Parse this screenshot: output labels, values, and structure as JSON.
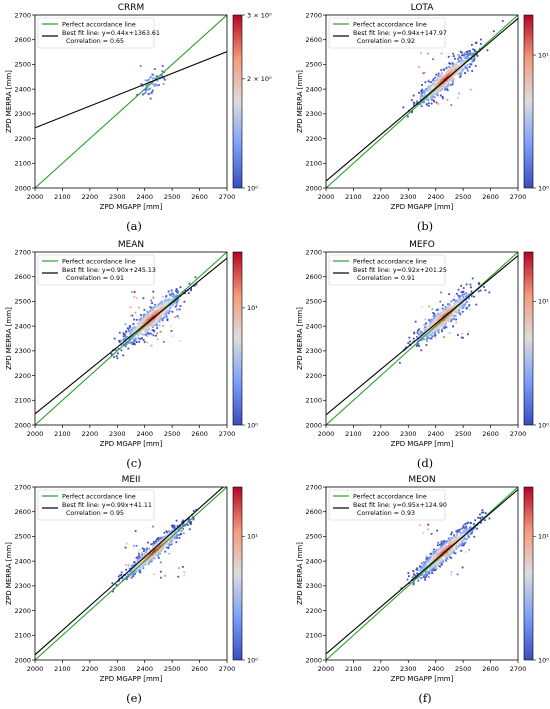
{
  "panels": [
    {
      "id": "a",
      "title": "CRRM",
      "panel_label": "(a)",
      "slope": 0.44,
      "intercept": 1363.61,
      "legend": [
        "Perfect accordance line",
        "Best fit line: y=0.44x+1363.61",
        "Correlation = 0.65"
      ],
      "colorbar": {
        "ticks": [
          "10⁰",
          "2 × 10⁰",
          "3 × 10⁰"
        ],
        "tick_values": [
          1,
          2,
          3
        ],
        "scale": "log",
        "range": [
          1,
          3
        ]
      },
      "cluster": {
        "cx": 2430,
        "cy": 2432,
        "sx": 28,
        "sy": 32,
        "rho": 0.65,
        "n": 70
      }
    },
    {
      "id": "b",
      "title": "LOTA",
      "panel_label": "(b)",
      "slope": 0.94,
      "intercept": 147.97,
      "legend": [
        "Perfect accordance line",
        "Best fit line: y=0.94x+147.97",
        "Correlation = 0.92"
      ],
      "colorbar": {
        "ticks": [
          "10⁰",
          "10¹"
        ],
        "tick_values": [
          1,
          10
        ],
        "scale": "log",
        "range": [
          1,
          20
        ]
      },
      "cluster": {
        "cx": 2435,
        "cy": 2440,
        "sx": 55,
        "sy": 55,
        "rho": 0.92,
        "n": 650
      }
    },
    {
      "id": "c",
      "title": "MEAN",
      "panel_label": "(c)",
      "slope": 0.9,
      "intercept": 245.13,
      "legend": [
        "Perfect accordance line",
        "Best fit line: y=0.90x+245.13",
        "Correlation = 0.91"
      ],
      "colorbar": {
        "ticks": [
          "10⁰",
          "10¹"
        ],
        "tick_values": [
          1,
          10
        ],
        "scale": "log",
        "range": [
          1,
          30
        ]
      },
      "cluster": {
        "cx": 2425,
        "cy": 2430,
        "sx": 55,
        "sy": 55,
        "rho": 0.91,
        "n": 700
      }
    },
    {
      "id": "d",
      "title": "MEFO",
      "panel_label": "(d)",
      "slope": 0.92,
      "intercept": 201.25,
      "legend": [
        "Perfect accordance line",
        "Best fit line: y=0.92x+201.25",
        "Correlation = 0.91"
      ],
      "colorbar": {
        "ticks": [
          "10⁰",
          "10¹"
        ],
        "tick_values": [
          1,
          10
        ],
        "scale": "log",
        "range": [
          1,
          25
        ]
      },
      "cluster": {
        "cx": 2430,
        "cy": 2435,
        "sx": 52,
        "sy": 52,
        "rho": 0.91,
        "n": 650
      }
    },
    {
      "id": "e",
      "title": "MEII",
      "panel_label": "(e)",
      "slope": 0.99,
      "intercept": 41.11,
      "legend": [
        "Perfect accordance line",
        "Best fit line: y=0.99x+41.11",
        "Correlation = 0.95"
      ],
      "colorbar": {
        "ticks": [
          "10⁰",
          "10¹"
        ],
        "tick_values": [
          1,
          10
        ],
        "scale": "log",
        "range": [
          1,
          25
        ]
      },
      "cluster": {
        "cx": 2435,
        "cy": 2440,
        "sx": 55,
        "sy": 55,
        "rho": 0.95,
        "n": 650
      }
    },
    {
      "id": "f",
      "title": "MEON",
      "panel_label": "(f)",
      "slope": 0.95,
      "intercept": 124.9,
      "legend": [
        "Perfect accordance line",
        "Best fit line: y=0.95x+124.90",
        "Correlation = 0.93"
      ],
      "colorbar": {
        "ticks": [
          "10⁰",
          "10¹"
        ],
        "tick_values": [
          1,
          10
        ],
        "scale": "log",
        "range": [
          1,
          25
        ]
      },
      "cluster": {
        "cx": 2435,
        "cy": 2440,
        "sx": 55,
        "sy": 55,
        "rho": 0.93,
        "n": 650
      }
    }
  ],
  "chart_data": [
    {
      "type": "scatter",
      "title": "CRRM",
      "xlabel": "ZPD MGAPP [mm]",
      "ylabel": "ZPD MERRA [mm]",
      "xlim": [
        2000,
        2700
      ],
      "ylim": [
        2000,
        2700
      ],
      "series": [
        {
          "name": "Perfect accordance line",
          "x": [
            2000,
            2700
          ],
          "y": [
            2000,
            2700
          ]
        },
        {
          "name": "Best fit line: y=0.44x+1363.61",
          "x": [
            2000,
            2700
          ],
          "y": [
            2243.61,
            2551.61
          ]
        }
      ]
    },
    {
      "type": "scatter",
      "title": "LOTA",
      "xlabel": "ZPD MGAPP [mm]",
      "ylabel": "ZPD MERRA [mm]",
      "xlim": [
        2000,
        2700
      ],
      "ylim": [
        2000,
        2700
      ],
      "series": [
        {
          "name": "Perfect accordance line",
          "x": [
            2000,
            2700
          ],
          "y": [
            2000,
            2700
          ]
        },
        {
          "name": "Best fit line: y=0.94x+147.97",
          "x": [
            2000,
            2700
          ],
          "y": [
            2027.97,
            2685.97
          ]
        }
      ]
    },
    {
      "type": "scatter",
      "title": "MEAN",
      "xlabel": "ZPD MGAPP [mm]",
      "ylabel": "ZPD MERRA [mm]",
      "xlim": [
        2000,
        2700
      ],
      "ylim": [
        2000,
        2700
      ],
      "series": [
        {
          "name": "Perfect accordance line",
          "x": [
            2000,
            2700
          ],
          "y": [
            2000,
            2700
          ]
        },
        {
          "name": "Best fit line: y=0.90x+245.13",
          "x": [
            2000,
            2700
          ],
          "y": [
            2045.13,
            2675.13
          ]
        }
      ]
    },
    {
      "type": "scatter",
      "title": "MEFO",
      "xlabel": "ZPD MGAPP [mm]",
      "ylabel": "ZPD MERRA [mm]",
      "xlim": [
        2000,
        2700
      ],
      "ylim": [
        2000,
        2700
      ],
      "series": [
        {
          "name": "Perfect accordance line",
          "x": [
            2000,
            2700
          ],
          "y": [
            2000,
            2700
          ]
        },
        {
          "name": "Best fit line: y=0.92x+201.25",
          "x": [
            2000,
            2700
          ],
          "y": [
            2041.25,
            2685.25
          ]
        }
      ]
    },
    {
      "type": "scatter",
      "title": "MEII",
      "xlabel": "ZPD MGAPP [mm]",
      "ylabel": "ZPD MERRA [mm]",
      "xlim": [
        2000,
        2700
      ],
      "ylim": [
        2000,
        2700
      ],
      "series": [
        {
          "name": "Perfect accordance line",
          "x": [
            2000,
            2700
          ],
          "y": [
            2000,
            2700
          ]
        },
        {
          "name": "Best fit line: y=0.99x+41.11",
          "x": [
            2000,
            2700
          ],
          "y": [
            2021.11,
            2714.11
          ]
        }
      ]
    },
    {
      "type": "scatter",
      "title": "MEON",
      "xlabel": "ZPD MGAPP [mm]",
      "ylabel": "ZPD MERRA [mm]",
      "xlim": [
        2000,
        2700
      ],
      "ylim": [
        2000,
        2700
      ],
      "series": [
        {
          "name": "Perfect accordance line",
          "x": [
            2000,
            2700
          ],
          "y": [
            2000,
            2700
          ]
        },
        {
          "name": "Best fit line: y=0.95x+124.90",
          "x": [
            2000,
            2700
          ],
          "y": [
            2024.9,
            2689.9
          ]
        }
      ]
    }
  ],
  "axis": {
    "xlabel": "ZPD MGAPP [mm]",
    "ylabel": "ZPD MERRA [mm]",
    "ticks": [
      2000,
      2100,
      2200,
      2300,
      2400,
      2500,
      2600,
      2700
    ],
    "range": [
      2000,
      2700
    ]
  },
  "colors": {
    "perfect": "#2ca02c",
    "fit": "#000000"
  }
}
